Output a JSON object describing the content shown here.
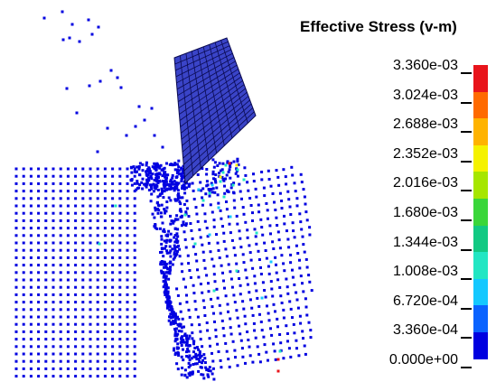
{
  "legend": {
    "title": "Effective Stress (v-m)",
    "labels": [
      "3.360e-03",
      "3.024e-03",
      "2.688e-03",
      "2.352e-03",
      "2.016e-03",
      "1.680e-03",
      "1.344e-03",
      "1.008e-03",
      "6.720e-04",
      "3.360e-04",
      "0.000e+00"
    ],
    "colors": [
      "#e8141b",
      "#ff6a00",
      "#ffb300",
      "#f5f200",
      "#a6e600",
      "#3ad63a",
      "#12c983",
      "#22e6c3",
      "#14c8ff",
      "#0a63ff",
      "#0000e0"
    ]
  },
  "colors": {
    "particle": "#0000e0",
    "plate_fill": "#3a44c8",
    "plate_grid": "#0a0a50",
    "warm_particle": "#e8141b",
    "mid_particle": "#22e6c3"
  }
}
